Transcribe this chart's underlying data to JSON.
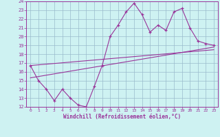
{
  "xlabel": "Windchill (Refroidissement éolien,°C)",
  "bg_color": "#cef2f2",
  "line_color": "#993399",
  "grid_color": "#99bbcc",
  "xlim": [
    -0.5,
    23.5
  ],
  "ylim": [
    12,
    24
  ],
  "yticks": [
    12,
    13,
    14,
    15,
    16,
    17,
    18,
    19,
    20,
    21,
    22,
    23,
    24
  ],
  "xticks": [
    0,
    1,
    2,
    3,
    4,
    5,
    6,
    7,
    8,
    9,
    10,
    11,
    12,
    13,
    14,
    15,
    16,
    17,
    18,
    19,
    20,
    21,
    22,
    23
  ],
  "line1_x": [
    0,
    1,
    2,
    3,
    4,
    5,
    6,
    7,
    8,
    9,
    10,
    11,
    12,
    13,
    14,
    15,
    16,
    17,
    18,
    19,
    20,
    21,
    22,
    23
  ],
  "line1_y": [
    16.7,
    15.0,
    14.0,
    12.7,
    14.0,
    13.0,
    12.2,
    12.0,
    14.3,
    16.7,
    20.0,
    21.3,
    22.8,
    23.8,
    22.5,
    20.5,
    21.3,
    20.7,
    22.8,
    23.2,
    21.0,
    19.5,
    19.2,
    19.0
  ],
  "line2_x": [
    0,
    23
  ],
  "line2_y": [
    15.3,
    18.8
  ],
  "line3_x": [
    0,
    23
  ],
  "line3_y": [
    16.7,
    18.5
  ]
}
